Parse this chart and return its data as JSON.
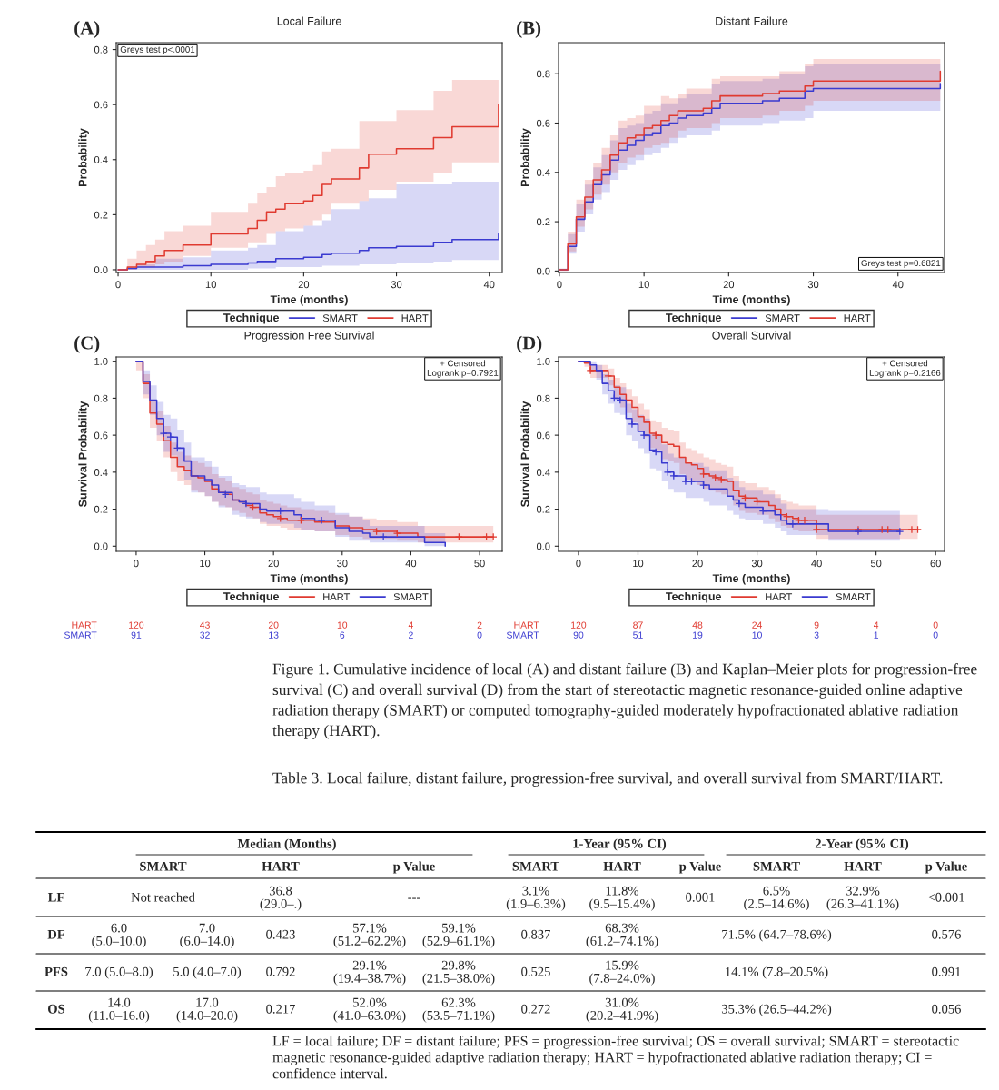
{
  "chart_data": [
    {
      "type": "step",
      "title": "Local Failure",
      "xlabel": "Time (months)",
      "ylabel": "Probability",
      "legend_title": "Technique",
      "legend": "bottom",
      "xlim": [
        -0.2,
        41.4
      ],
      "ylim": [
        -0.01,
        0.825
      ],
      "xticks": [
        0,
        10,
        20,
        30,
        40
      ],
      "yticks": [
        {
          "value": 0.0,
          "label": "0.0"
        },
        {
          "value": 0.2,
          "label": "0.2"
        },
        {
          "value": 0.4,
          "label": "0.4"
        },
        {
          "value": 0.6,
          "label": "0.6"
        },
        {
          "value": 0.8,
          "label": "0.8"
        }
      ],
      "annotations": [
        "(A)",
        "Greys test p<.0001"
      ],
      "series": [
        {
          "name": "SMART",
          "color": "#3a3ad0",
          "x": [
            0,
            1,
            2,
            4,
            7,
            10,
            14,
            15,
            17,
            20,
            22,
            23,
            26,
            27,
            30,
            34,
            36,
            41
          ],
          "values": [
            0,
            0.005,
            0.01,
            0.01,
            0.015,
            0.02,
            0.025,
            0.03,
            0.04,
            0.045,
            0.055,
            0.06,
            0.07,
            0.08,
            0.085,
            0.1,
            0.11,
            0.13
          ],
          "lower": [
            0,
            0,
            0,
            0,
            0,
            0,
            0.005,
            0.005,
            0.01,
            0.01,
            0.015,
            0.015,
            0.02,
            0.02,
            0.025,
            0.03,
            0.035,
            0.035
          ],
          "upper": [
            0,
            0.01,
            0.02,
            0.04,
            0.045,
            0.07,
            0.08,
            0.09,
            0.14,
            0.16,
            0.18,
            0.22,
            0.25,
            0.26,
            0.31,
            0.31,
            0.32,
            0.32
          ]
        },
        {
          "name": "HART",
          "color": "#e03a30",
          "x": [
            0,
            1,
            2,
            3,
            4,
            5,
            7,
            10,
            14,
            15,
            16,
            17,
            18,
            20,
            21,
            22,
            23,
            26,
            27,
            30,
            34,
            36,
            41
          ],
          "values": [
            0,
            0.01,
            0.02,
            0.03,
            0.05,
            0.07,
            0.09,
            0.13,
            0.15,
            0.18,
            0.21,
            0.22,
            0.24,
            0.25,
            0.27,
            0.31,
            0.33,
            0.37,
            0.42,
            0.44,
            0.48,
            0.52,
            0.6
          ],
          "lower": [
            0,
            0,
            0.01,
            0.01,
            0.02,
            0.03,
            0.05,
            0.08,
            0.1,
            0.1,
            0.13,
            0.14,
            0.15,
            0.16,
            0.18,
            0.2,
            0.24,
            0.25,
            0.29,
            0.32,
            0.35,
            0.39,
            0.39
          ],
          "upper": [
            0,
            0.04,
            0.07,
            0.09,
            0.11,
            0.14,
            0.16,
            0.21,
            0.24,
            0.28,
            0.3,
            0.34,
            0.35,
            0.36,
            0.38,
            0.43,
            0.44,
            0.54,
            0.54,
            0.58,
            0.65,
            0.69,
            0.69
          ]
        }
      ]
    },
    {
      "type": "step",
      "title": "Distant Failure",
      "xlabel": "Time (months)",
      "ylabel": "Probability",
      "legend_title": "Technique",
      "legend": "bottom",
      "xlim": [
        -0.1,
        45.5
      ],
      "ylim": [
        -0.006,
        0.926
      ],
      "xticks": [
        0,
        10,
        20,
        30,
        40
      ],
      "yticks": [
        {
          "value": 0.0,
          "label": "0.0"
        },
        {
          "value": 0.2,
          "label": "0.2"
        },
        {
          "value": 0.4,
          "label": "0.4"
        },
        {
          "value": 0.6,
          "label": "0.6"
        },
        {
          "value": 0.8,
          "label": "0.8"
        }
      ],
      "annotations": [
        "(B)",
        "Greys test p=0.6821"
      ],
      "series": [
        {
          "name": "SMART",
          "color": "#3a3ad0",
          "x": [
            0,
            1,
            2,
            3,
            4,
            5,
            6,
            7,
            8,
            9,
            10,
            11,
            12,
            13,
            14,
            15,
            17,
            18,
            19,
            24,
            26,
            29,
            30,
            45
          ],
          "values": [
            0.005,
            0.1,
            0.21,
            0.28,
            0.35,
            0.39,
            0.45,
            0.49,
            0.51,
            0.53,
            0.55,
            0.56,
            0.59,
            0.6,
            0.62,
            0.63,
            0.64,
            0.66,
            0.68,
            0.69,
            0.7,
            0.73,
            0.74,
            0.76
          ],
          "lower": [
            0,
            0.07,
            0.16,
            0.23,
            0.29,
            0.32,
            0.37,
            0.41,
            0.43,
            0.45,
            0.47,
            0.48,
            0.5,
            0.52,
            0.54,
            0.55,
            0.55,
            0.57,
            0.59,
            0.6,
            0.61,
            0.62,
            0.65,
            0.65
          ],
          "upper": [
            0.01,
            0.15,
            0.27,
            0.35,
            0.42,
            0.47,
            0.53,
            0.58,
            0.59,
            0.6,
            0.64,
            0.65,
            0.68,
            0.68,
            0.7,
            0.72,
            0.72,
            0.76,
            0.77,
            0.78,
            0.8,
            0.83,
            0.84,
            0.84
          ]
        },
        {
          "name": "HART",
          "color": "#e03a30",
          "x": [
            0,
            1,
            2,
            3,
            4,
            5,
            6,
            7,
            8,
            9,
            10,
            11,
            12,
            13,
            14,
            15,
            17,
            18,
            19,
            24,
            26,
            29,
            30,
            45
          ],
          "values": [
            0.005,
            0.11,
            0.22,
            0.3,
            0.37,
            0.41,
            0.47,
            0.52,
            0.54,
            0.55,
            0.58,
            0.59,
            0.61,
            0.63,
            0.65,
            0.65,
            0.66,
            0.69,
            0.71,
            0.72,
            0.73,
            0.75,
            0.77,
            0.81
          ],
          "lower": [
            0,
            0.08,
            0.18,
            0.25,
            0.31,
            0.35,
            0.4,
            0.44,
            0.46,
            0.47,
            0.5,
            0.51,
            0.52,
            0.54,
            0.57,
            0.58,
            0.58,
            0.6,
            0.62,
            0.63,
            0.65,
            0.67,
            0.69,
            0.69
          ],
          "upper": [
            0.01,
            0.16,
            0.29,
            0.37,
            0.44,
            0.5,
            0.55,
            0.61,
            0.62,
            0.63,
            0.67,
            0.67,
            0.71,
            0.7,
            0.72,
            0.74,
            0.74,
            0.78,
            0.79,
            0.79,
            0.81,
            0.84,
            0.86,
            0.86
          ]
        }
      ]
    },
    {
      "type": "step",
      "title": "Progression Free Survival",
      "xlabel": "Time (months)",
      "ylabel": "Survival Probability",
      "legend_title": "Technique",
      "legend": "bottom",
      "xlim": [
        -2.9,
        53.3
      ],
      "ylim": [
        -0.028,
        1.023
      ],
      "xticks": [
        0,
        10,
        20,
        30,
        40,
        50
      ],
      "yticks": [
        {
          "value": 0.0,
          "label": "0.0"
        },
        {
          "value": 0.2,
          "label": "0.2"
        },
        {
          "value": 0.4,
          "label": "0.4"
        },
        {
          "value": 0.6,
          "label": "0.6"
        },
        {
          "value": 0.8,
          "label": "0.8"
        },
        {
          "value": 1.0,
          "label": "1.0"
        }
      ],
      "annotations": [
        "(C)",
        "+ Censored\nLogrank p=0.7921",
        "HART",
        "120",
        "43",
        "20",
        "10",
        "4",
        "2",
        "SMART",
        "91",
        "32",
        "13",
        "6",
        "2",
        "0"
      ],
      "series": [
        {
          "name": "HART",
          "color": "#e03a30",
          "x": [
            0,
            1,
            2,
            3,
            4,
            5,
            6,
            7,
            8,
            9,
            10,
            11,
            12,
            13,
            14,
            15,
            16,
            17,
            18,
            19,
            20,
            21,
            22,
            24,
            26,
            28,
            29,
            31,
            33,
            35,
            38,
            41,
            52
          ],
          "values": [
            1.0,
            0.88,
            0.72,
            0.66,
            0.57,
            0.48,
            0.43,
            0.41,
            0.38,
            0.37,
            0.35,
            0.31,
            0.29,
            0.28,
            0.25,
            0.24,
            0.22,
            0.21,
            0.18,
            0.17,
            0.16,
            0.15,
            0.14,
            0.14,
            0.13,
            0.13,
            0.11,
            0.1,
            0.09,
            0.08,
            0.07,
            0.05,
            0.05
          ],
          "lower": [
            0.95,
            0.8,
            0.64,
            0.57,
            0.48,
            0.4,
            0.35,
            0.33,
            0.3,
            0.29,
            0.27,
            0.24,
            0.22,
            0.21,
            0.19,
            0.18,
            0.16,
            0.15,
            0.12,
            0.11,
            0.11,
            0.1,
            0.09,
            0.09,
            0.08,
            0.08,
            0.06,
            0.05,
            0.04,
            0.04,
            0.03,
            0.02,
            0.02
          ],
          "upper": [
            1.0,
            0.93,
            0.79,
            0.73,
            0.65,
            0.56,
            0.51,
            0.49,
            0.46,
            0.45,
            0.43,
            0.39,
            0.37,
            0.35,
            0.32,
            0.31,
            0.29,
            0.28,
            0.25,
            0.24,
            0.23,
            0.22,
            0.21,
            0.2,
            0.19,
            0.18,
            0.17,
            0.16,
            0.15,
            0.14,
            0.13,
            0.11,
            0.11
          ]
        },
        {
          "name": "SMART",
          "color": "#3a3ad0",
          "x": [
            0,
            1,
            2,
            3,
            4,
            5,
            6,
            7,
            8,
            10,
            11,
            12,
            14,
            15,
            16,
            18,
            19,
            23,
            24,
            26,
            29,
            31,
            33,
            34,
            42,
            45
          ],
          "values": [
            1.0,
            0.89,
            0.79,
            0.69,
            0.61,
            0.59,
            0.53,
            0.46,
            0.38,
            0.36,
            0.33,
            0.29,
            0.25,
            0.24,
            0.23,
            0.2,
            0.19,
            0.17,
            0.15,
            0.14,
            0.1,
            0.08,
            0.07,
            0.05,
            0.02,
            0.0
          ],
          "lower": [
            1.0,
            0.82,
            0.71,
            0.6,
            0.51,
            0.49,
            0.43,
            0.36,
            0.29,
            0.27,
            0.24,
            0.21,
            0.17,
            0.16,
            0.15,
            0.13,
            0.12,
            0.1,
            0.09,
            0.08,
            0.05,
            0.03,
            0.03,
            0.02,
            0.0,
            0.0
          ],
          "upper": [
            1.0,
            0.95,
            0.87,
            0.78,
            0.71,
            0.69,
            0.63,
            0.56,
            0.48,
            0.46,
            0.43,
            0.38,
            0.34,
            0.33,
            0.32,
            0.29,
            0.28,
            0.26,
            0.24,
            0.22,
            0.18,
            0.16,
            0.14,
            0.11,
            0.07,
            0.07
          ]
        },
        {
          "type": "scatter",
          "marker": "cross",
          "color": "#e03a30",
          "x": [
            17,
            21,
            24,
            35,
            38,
            47,
            51,
            52
          ],
          "values": [
            0.21,
            0.15,
            0.14,
            0.08,
            0.07,
            0.05,
            0.05,
            0.05
          ]
        },
        {
          "type": "scatter",
          "marker": "cross",
          "color": "#3a3ad0",
          "x": [
            4,
            5,
            6,
            13,
            16,
            21,
            27,
            36
          ],
          "values": [
            0.61,
            0.59,
            0.53,
            0.28,
            0.23,
            0.19,
            0.14,
            0.05
          ]
        }
      ]
    },
    {
      "type": "step",
      "title": "Overall Survival",
      "xlabel": "Time (months)",
      "ylabel": "Survival Probability",
      "legend_title": "Technique",
      "legend": "bottom",
      "xlim": [
        -3.35,
        61.5
      ],
      "ylim": [
        -0.028,
        1.023
      ],
      "xticks": [
        0,
        10,
        20,
        30,
        40,
        50,
        60
      ],
      "yticks": [
        {
          "value": 0.0,
          "label": "0.0"
        },
        {
          "value": 0.2,
          "label": "0.2"
        },
        {
          "value": 0.4,
          "label": "0.4"
        },
        {
          "value": 0.6,
          "label": "0.6"
        },
        {
          "value": 0.8,
          "label": "0.8"
        },
        {
          "value": 1.0,
          "label": "1.0"
        }
      ],
      "annotations": [
        "(D)",
        "+ Censored\nLogrank p=0.2166",
        "HART",
        "120",
        "87",
        "48",
        "24",
        "9",
        "4",
        "0",
        "SMART",
        "90",
        "51",
        "19",
        "10",
        "3",
        "1",
        "0"
      ],
      "series": [
        {
          "name": "HART",
          "color": "#e03a30",
          "x": [
            0,
            1,
            2,
            5,
            6,
            7,
            8,
            9,
            10,
            11,
            12,
            13,
            14,
            15,
            16,
            17,
            18,
            19,
            20,
            21,
            22,
            23,
            24,
            25,
            26,
            27,
            28,
            30,
            32,
            33,
            34,
            35,
            36,
            37,
            40,
            57
          ],
          "values": [
            1.0,
            0.99,
            0.95,
            0.92,
            0.86,
            0.82,
            0.79,
            0.75,
            0.7,
            0.67,
            0.61,
            0.6,
            0.56,
            0.55,
            0.54,
            0.48,
            0.45,
            0.44,
            0.42,
            0.39,
            0.38,
            0.37,
            0.36,
            0.35,
            0.3,
            0.27,
            0.26,
            0.24,
            0.22,
            0.2,
            0.17,
            0.16,
            0.15,
            0.14,
            0.09,
            0.09
          ],
          "lower": [
            1.0,
            0.97,
            0.91,
            0.87,
            0.8,
            0.75,
            0.72,
            0.67,
            0.62,
            0.59,
            0.53,
            0.52,
            0.47,
            0.46,
            0.45,
            0.39,
            0.36,
            0.35,
            0.33,
            0.31,
            0.3,
            0.29,
            0.28,
            0.27,
            0.22,
            0.19,
            0.18,
            0.17,
            0.15,
            0.13,
            0.11,
            0.1,
            0.09,
            0.08,
            0.04,
            0.04
          ],
          "upper": [
            1.0,
            1.0,
            0.98,
            0.96,
            0.91,
            0.88,
            0.85,
            0.81,
            0.77,
            0.74,
            0.68,
            0.67,
            0.64,
            0.63,
            0.62,
            0.56,
            0.53,
            0.52,
            0.5,
            0.48,
            0.47,
            0.45,
            0.44,
            0.43,
            0.38,
            0.35,
            0.34,
            0.32,
            0.3,
            0.28,
            0.25,
            0.24,
            0.23,
            0.22,
            0.17,
            0.17
          ]
        },
        {
          "name": "SMART",
          "color": "#3a3ad0",
          "x": [
            0,
            2,
            3,
            4,
            5,
            6,
            7,
            8,
            9,
            10,
            11,
            12,
            13,
            14,
            15,
            16,
            18,
            21,
            22,
            25,
            26,
            27,
            28,
            31,
            33,
            34,
            35,
            42,
            54
          ],
          "values": [
            1.0,
            0.98,
            0.95,
            0.88,
            0.84,
            0.8,
            0.79,
            0.69,
            0.66,
            0.62,
            0.6,
            0.52,
            0.51,
            0.45,
            0.4,
            0.38,
            0.35,
            0.33,
            0.31,
            0.27,
            0.25,
            0.23,
            0.21,
            0.19,
            0.17,
            0.14,
            0.12,
            0.08,
            0.08
          ],
          "lower": [
            1.0,
            0.94,
            0.9,
            0.82,
            0.77,
            0.72,
            0.71,
            0.6,
            0.57,
            0.53,
            0.5,
            0.42,
            0.41,
            0.35,
            0.31,
            0.29,
            0.26,
            0.24,
            0.22,
            0.19,
            0.17,
            0.15,
            0.14,
            0.12,
            0.1,
            0.08,
            0.06,
            0.03,
            0.03
          ],
          "upper": [
            1.0,
            1.0,
            0.98,
            0.93,
            0.9,
            0.87,
            0.86,
            0.77,
            0.74,
            0.71,
            0.69,
            0.61,
            0.6,
            0.55,
            0.5,
            0.48,
            0.45,
            0.43,
            0.41,
            0.37,
            0.35,
            0.32,
            0.3,
            0.28,
            0.26,
            0.23,
            0.2,
            0.19,
            0.19
          ]
        },
        {
          "type": "scatter",
          "marker": "cross",
          "color": "#e03a30",
          "x": [
            2,
            5,
            13,
            21,
            23,
            24,
            28,
            30,
            35,
            37,
            38,
            40,
            47,
            51,
            52,
            56,
            57
          ],
          "values": [
            0.95,
            0.92,
            0.6,
            0.39,
            0.37,
            0.36,
            0.26,
            0.24,
            0.16,
            0.14,
            0.14,
            0.09,
            0.09,
            0.09,
            0.09,
            0.09,
            0.09
          ]
        },
        {
          "type": "scatter",
          "marker": "cross",
          "color": "#3a3ad0",
          "x": [
            6,
            7,
            9,
            11,
            13,
            15,
            16,
            18,
            19,
            21,
            27,
            31,
            36,
            47,
            54
          ],
          "values": [
            0.8,
            0.79,
            0.66,
            0.6,
            0.51,
            0.4,
            0.38,
            0.35,
            0.35,
            0.33,
            0.23,
            0.19,
            0.12,
            0.08,
            0.08
          ]
        }
      ]
    },
    {
      "type": "other",
      "annotations": [
        "Figure 1. Cumulative incidence of local (A) and distant failure (B) and Kaplan–Meier plots for progression-free survival (C) and overall survival (D) from the start of stereotactic magnetic resonance-guided online adaptive radiation therapy (SMART) or computed tomography-guided moderately hypofractionated ablative radiation therapy (HART).",
        "Table 3. Local failure, distant failure, progression-free survival, and overall survival from SMART/HART.",
        "Median (Months)",
        "1-Year (95% CI)",
        "2-Year (95% CI)",
        "SMART",
        "HART",
        "p Value",
        "SMART",
        "HART",
        "p Value",
        "SMART",
        "HART",
        "p Value",
        "LF",
        "Not reached",
        "36.8\n(29.0–.)",
        "---",
        "3.1%\n(1.9–6.3%)",
        "11.8%\n(9.5–15.4%)",
        "0.001",
        "6.5%\n(2.5–14.6%)",
        "32.9%\n(26.3–41.1%)",
        "<0.001",
        "DF",
        "6.0\n(5.0–10.0)",
        "7.0\n(6.0–14.0)",
        "0.423",
        "57.1%\n(51.2–62.2%)",
        "59.1%\n(52.9–61.1%)",
        "0.837",
        "68.3%\n(61.2–74.1%)",
        "71.5% (64.7–78.6%)",
        "0.576",
        "PFS",
        "7.0 (5.0–8.0)",
        "5.0 (4.0–7.0)",
        "0.792",
        "29.1%\n(19.4–38.7%)",
        "29.8%\n(21.5–38.0%)",
        "0.525",
        "15.9%\n(7.8–24.0%)",
        "14.1% (7.8–20.5%)",
        "0.991",
        "OS",
        "14.0\n(11.0–16.0)",
        "17.0\n(14.0–20.0)",
        "0.217",
        "52.0%\n(41.0–63.0%)",
        "62.3%\n(53.5–71.1%)",
        "0.272",
        "31.0%\n(20.2–41.9%)",
        "35.3% (26.5–44.2%)",
        "0.056",
        "LF = local failure; DF = distant failure; PFS = progression-free survival; OS = overall survival; SMART = stereotactic magnetic resonance-guided adaptive radiation therapy; HART = hypofractionated ablative radiation therapy; CI = confidence interval."
      ]
    }
  ]
}
